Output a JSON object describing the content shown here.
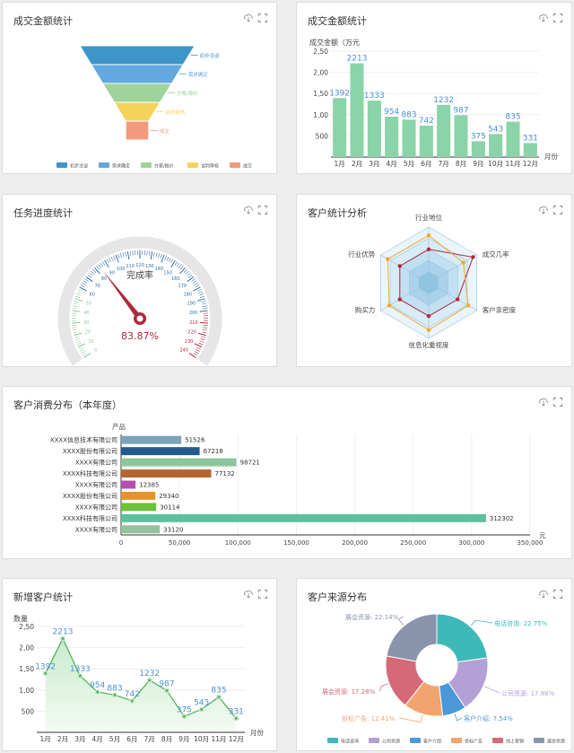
{
  "panels": {
    "p1": {
      "title": "成交金额统计"
    },
    "p2": {
      "title": "成交金额统计"
    },
    "p3": {
      "title": "任务进度统计"
    },
    "p4": {
      "title": "客户统计分析"
    },
    "p5": {
      "title": "客户消费分布（本年度）"
    },
    "p6": {
      "title": "新增客户统计"
    },
    "p7": {
      "title": "客户来源分布"
    }
  },
  "colors": {
    "green": "#8bd3a8",
    "blue": "#4a90d9",
    "panel_border": "#dcdcdc"
  },
  "chart_data": [
    {
      "id": "funnel",
      "type": "funnel",
      "stages": [
        {
          "name": "初步洽谈",
          "color": "#3d95c9"
        },
        {
          "name": "需求确定",
          "color": "#63a8df"
        },
        {
          "name": "方案/报价",
          "color": "#9ed39b"
        },
        {
          "name": "谈判审核",
          "color": "#f5d35a"
        },
        {
          "name": "成交",
          "color": "#f29a7d"
        }
      ],
      "legend": [
        "初步洽谈",
        "需求确定",
        "方案/报价",
        "谈判审核",
        "成交"
      ]
    },
    {
      "id": "bar-amount",
      "type": "bar",
      "ylabel": "成交金额（万元",
      "xlabel": "月份",
      "categories": [
        "1月",
        "2月",
        "3月",
        "4月",
        "5月",
        "6月",
        "7月",
        "8月",
        "9月",
        "10月",
        "11月",
        "12月"
      ],
      "values": [
        1392,
        2213,
        1333,
        954,
        883,
        742,
        1232,
        987,
        375,
        543,
        835,
        331
      ],
      "yticks": [
        "500",
        "1,00",
        "1,50",
        "2,00",
        "2,50"
      ],
      "ylim": [
        0,
        2500
      ],
      "color": "#8bd3a8",
      "label_color": "#4a90d9"
    },
    {
      "id": "gauge",
      "type": "gauge",
      "title": "完成率",
      "value": 83.87,
      "value_label": "83.87%",
      "ticks": [
        "0",
        "10",
        "20",
        "30",
        "40",
        "50",
        "60",
        "70",
        "80",
        "90",
        "100",
        "110",
        "120",
        "130",
        "140",
        "150",
        "160",
        "170",
        "180",
        "190",
        "200",
        "210",
        "220",
        "230",
        "240"
      ],
      "max": 240
    },
    {
      "id": "radar",
      "type": "radar",
      "indicators": [
        "行业地位",
        "成交几率",
        "客户亲密度",
        "信息化重视度",
        "购买力",
        "行业优势"
      ],
      "series": [
        {
          "color": "#b0283a",
          "values": [
            0.6,
            0.92,
            0.6,
            0.6,
            0.6,
            0.6
          ]
        },
        {
          "color": "#f0a830",
          "values": [
            0.85,
            0.72,
            0.82,
            0.85,
            0.82,
            0.85
          ]
        }
      ]
    },
    {
      "id": "hbar",
      "type": "bar",
      "ylabel": "产品",
      "xlabel": "元",
      "categories": [
        "XXXX信息技术有限公司",
        "XXXX股份有限公司",
        "XXXX有限公司",
        "XXXX科技有限公司",
        "XXXX有限公司",
        "XXXX股份有限公司",
        "XXXX有限公司",
        "XXXX科技有限公司",
        "XXXX有限公司"
      ],
      "values": [
        51526,
        67218,
        98721,
        77132,
        12385,
        29340,
        30114,
        312302,
        33120
      ],
      "colors": [
        "#7aa3b8",
        "#245a8c",
        "#8dc69c",
        "#b5642f",
        "#b24fb0",
        "#e2952a",
        "#6cc13a",
        "#5dbfa0",
        "#94c29b"
      ],
      "xticks": [
        "0",
        "50,000",
        "100,000",
        "150,000",
        "200,000",
        "250,000",
        "300,000",
        "350,000"
      ],
      "xlim": [
        0,
        350000
      ]
    },
    {
      "id": "area-new",
      "type": "area",
      "ylabel": "数量",
      "xlabel": "月份",
      "categories": [
        "1月",
        "2月",
        "3月",
        "4月",
        "5月",
        "6月",
        "7月",
        "8月",
        "9月",
        "10月",
        "11月",
        "12月"
      ],
      "values": [
        1392,
        2213,
        1333,
        954,
        883,
        742,
        1232,
        987,
        375,
        543,
        835,
        331
      ],
      "yticks": [
        "500",
        "1,00",
        "1,50",
        "2,00",
        "2,50"
      ],
      "ylim": [
        0,
        2500
      ]
    },
    {
      "id": "donut",
      "type": "pie",
      "slices": [
        {
          "name": "电话咨询",
          "label": "电话咨询: 22.75%",
          "value": 22.75,
          "color": "#3fb8b8"
        },
        {
          "name": "公司资源",
          "label": "公司资源: 17.88%",
          "value": 17.88,
          "color": "#b3a0d6"
        },
        {
          "name": "客户介绍",
          "label": "客户介绍: 7.54%",
          "value": 7.54,
          "color": "#4a98d8"
        },
        {
          "name": "投标广告",
          "label": "投标广告: 12.41%",
          "value": 12.41,
          "color": "#f2a46e"
        },
        {
          "name": "展会资源",
          "label": "展会资源: 17.28%",
          "value": 17.28,
          "color": "#d46a78"
        },
        {
          "name": "展会资源",
          "label": "展会资源: 22.14%",
          "value": 22.14,
          "color": "#8a94ad"
        }
      ],
      "legend": [
        "电话咨询",
        "公司资源",
        "客户介绍",
        "投标广告",
        "线上营销",
        "展会资源"
      ]
    }
  ]
}
